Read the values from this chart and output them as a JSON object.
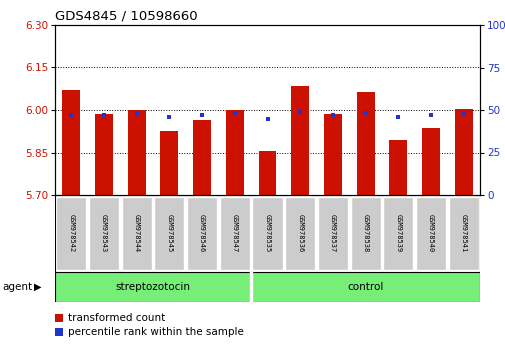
{
  "title": "GDS4845 / 10598660",
  "samples": [
    "GSM978542",
    "GSM978543",
    "GSM978544",
    "GSM978545",
    "GSM978546",
    "GSM978547",
    "GSM978535",
    "GSM978536",
    "GSM978537",
    "GSM978538",
    "GSM978539",
    "GSM978540",
    "GSM978541"
  ],
  "red_values": [
    6.07,
    5.985,
    6.0,
    5.925,
    5.965,
    6.0,
    5.855,
    6.085,
    5.985,
    6.065,
    5.895,
    5.935,
    6.005
  ],
  "blue_values": [
    47,
    47,
    48,
    46,
    47,
    48,
    45,
    49,
    47,
    48,
    46,
    47,
    48
  ],
  "ymin": 5.7,
  "ymax": 6.3,
  "y2min": 0,
  "y2max": 100,
  "yticks": [
    5.7,
    5.85,
    6.0,
    6.15,
    6.3
  ],
  "y2ticks": [
    0,
    25,
    50,
    75,
    100
  ],
  "red_color": "#cc1100",
  "blue_color": "#2233cc",
  "bar_width": 0.55,
  "groups": [
    {
      "label": "streptozotocin",
      "start": 0,
      "end": 6
    },
    {
      "label": "control",
      "start": 6,
      "end": 13
    }
  ],
  "group_color": "#77ee77",
  "separator_idx": 6,
  "legend_red": "transformed count",
  "legend_blue": "percentile rank within the sample",
  "agent_label": "agent",
  "tick_bg": "#cccccc"
}
